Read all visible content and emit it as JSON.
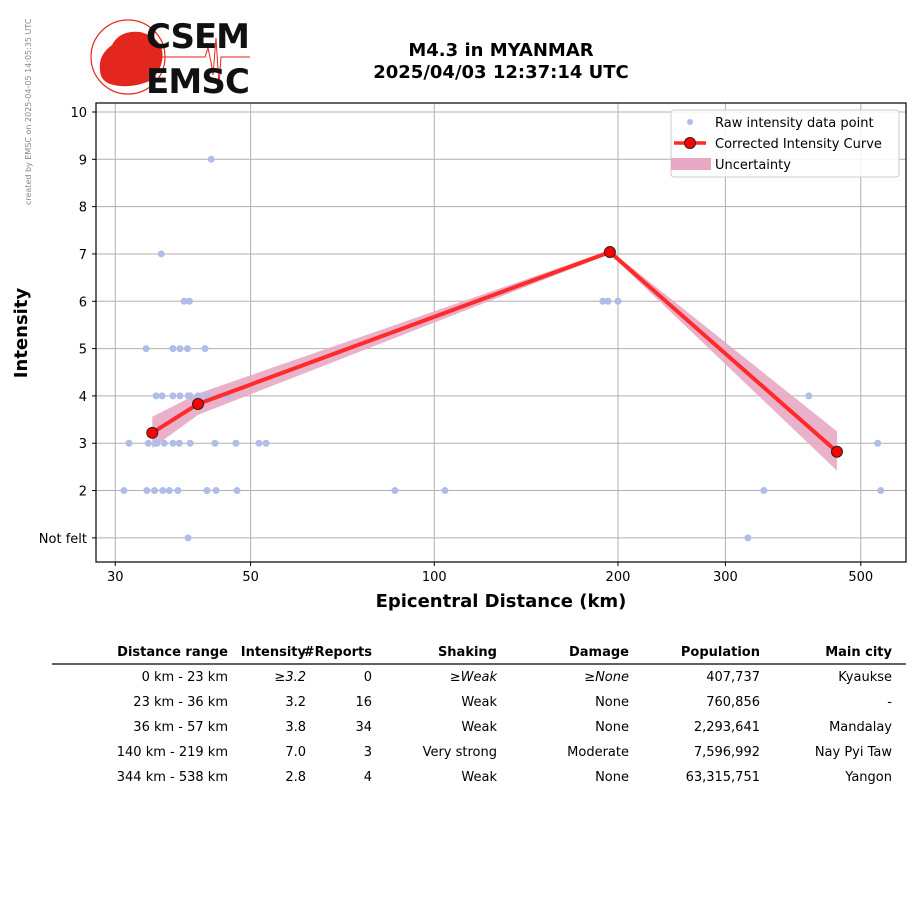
{
  "watermark": "created by EMSC on 2025-04-05 14:05:35 UTC",
  "logo": {
    "line1": "CSEM",
    "line2": "EMSC",
    "color": "#e3261e"
  },
  "title_line1": "M4.3 in MYANMAR",
  "title_line2": "2025/04/03 12:37:14 UTC",
  "chart_data": {
    "type": "scatter",
    "xlabel": "Epicentral Distance (km)",
    "ylabel": "Intensity",
    "xscale": "log",
    "xlim": [
      27.9,
      593
    ],
    "ylim": [
      0.49,
      10.19
    ],
    "xticks": [
      30,
      50,
      100,
      200,
      300,
      500
    ],
    "xtick_labels": [
      "30",
      "50",
      "100",
      "200",
      "300",
      "500"
    ],
    "yticks": [
      1,
      2,
      3,
      4,
      5,
      6,
      7,
      8,
      9,
      10
    ],
    "ytick_labels": [
      "Not felt",
      "2",
      "3",
      "4",
      "5",
      "6",
      "7",
      "8",
      "9",
      "10"
    ],
    "grid": true,
    "legend_placement": "top-right",
    "legend": [
      "Raw intensity data point",
      "Corrected Intensity Curve",
      "Uncertainty"
    ],
    "colors": {
      "raw": "#b0bde8",
      "curve": "#ff2a2a",
      "marker": "#ff0000",
      "band": "#e8a8c4"
    },
    "raw_points": [
      [
        43.1,
        9
      ],
      [
        35.7,
        7
      ],
      [
        38.9,
        6
      ],
      [
        39.7,
        6
      ],
      [
        188.9,
        6
      ],
      [
        192.6,
        6
      ],
      [
        200,
        6
      ],
      [
        33.7,
        5
      ],
      [
        37.3,
        5
      ],
      [
        38.3,
        5
      ],
      [
        39.4,
        5
      ],
      [
        42.1,
        5
      ],
      [
        35.0,
        4
      ],
      [
        35.8,
        4
      ],
      [
        37.3,
        4
      ],
      [
        38.3,
        4
      ],
      [
        39.5,
        4
      ],
      [
        39.8,
        4
      ],
      [
        41.0,
        4
      ],
      [
        42.4,
        4
      ],
      [
        45.9,
        4
      ],
      [
        411,
        4
      ],
      [
        31.6,
        3
      ],
      [
        34.0,
        3
      ],
      [
        34.9,
        3
      ],
      [
        35.1,
        3
      ],
      [
        36.1,
        3
      ],
      [
        37.3,
        3
      ],
      [
        38.2,
        3
      ],
      [
        39.8,
        3
      ],
      [
        43.7,
        3
      ],
      [
        47.3,
        3
      ],
      [
        51.6,
        3
      ],
      [
        53.0,
        3
      ],
      [
        533,
        3
      ],
      [
        31.0,
        2
      ],
      [
        33.8,
        2
      ],
      [
        34.8,
        2
      ],
      [
        35.9,
        2
      ],
      [
        36.8,
        2
      ],
      [
        38.0,
        2
      ],
      [
        42.4,
        2
      ],
      [
        43.9,
        2
      ],
      [
        47.5,
        2
      ],
      [
        86.2,
        2
      ],
      [
        104.1,
        2
      ],
      [
        346.8,
        2
      ],
      [
        539,
        2
      ],
      [
        39.5,
        1
      ],
      [
        326.5,
        1
      ]
    ],
    "curve": {
      "x": [
        34.5,
        41.0,
        194.0,
        457
      ],
      "y": [
        3.22,
        3.83,
        7.04,
        2.82
      ]
    },
    "uncertainty": {
      "x": [
        34.5,
        41.0,
        194.0,
        457
      ],
      "lower": [
        2.9,
        3.6,
        7.0,
        2.42
      ],
      "upper": [
        3.56,
        4.05,
        7.08,
        3.25
      ]
    }
  },
  "table": {
    "headers": [
      "Distance range",
      "Intensity",
      "#Reports",
      "Shaking",
      "Damage",
      "Population",
      "Main city"
    ],
    "rows": [
      {
        "cells": [
          "0 km -   23 km",
          "≥3.2",
          "0",
          "≥Weak",
          "≥None",
          "407,737",
          "Kyaukse"
        ],
        "italic": [
          false,
          true,
          false,
          true,
          true,
          false,
          false
        ]
      },
      {
        "cells": [
          "23 km -   36 km",
          "3.2",
          "16",
          "Weak",
          "None",
          "760,856",
          "-"
        ]
      },
      {
        "cells": [
          "36 km -   57 km",
          "3.8",
          "34",
          "Weak",
          "None",
          "2,293,641",
          "Mandalay"
        ]
      },
      {
        "cells": [
          "140 km -  219 km",
          "7.0",
          "3",
          "Very strong",
          "Moderate",
          "7,596,992",
          "Nay Pyi Taw"
        ]
      },
      {
        "cells": [
          "344 km -  538 km",
          "2.8",
          "4",
          "Weak",
          "None",
          "63,315,751",
          "Yangon"
        ]
      }
    ]
  }
}
